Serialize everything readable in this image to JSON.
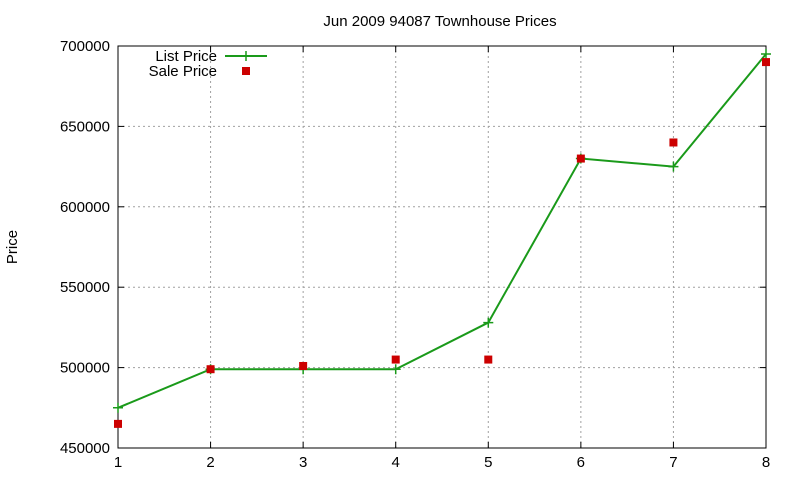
{
  "chart_data": {
    "type": "line",
    "title": "Jun 2009 94087 Townhouse Prices",
    "xlabel": "",
    "ylabel": "Price",
    "x": [
      1,
      2,
      3,
      4,
      5,
      6,
      7,
      8
    ],
    "xlim": [
      1,
      8
    ],
    "ylim": [
      450000,
      700000
    ],
    "xticks": [
      "1",
      "2",
      "3",
      "4",
      "5",
      "6",
      "7",
      "8"
    ],
    "yticks": [
      "450000",
      "500000",
      "550000",
      "600000",
      "650000",
      "700000"
    ],
    "grid": true,
    "legend_position": "top-left",
    "series": [
      {
        "name": "List Price",
        "style": "line-with-plus-markers",
        "color": "#1a9a1a",
        "values": [
          475000,
          499000,
          499000,
          499000,
          528000,
          630000,
          625000,
          695000
        ]
      },
      {
        "name": "Sale Price",
        "style": "square-markers",
        "color": "#cc0000",
        "values": [
          465000,
          499000,
          501000,
          505000,
          505000,
          630000,
          640000,
          690000
        ]
      }
    ]
  }
}
